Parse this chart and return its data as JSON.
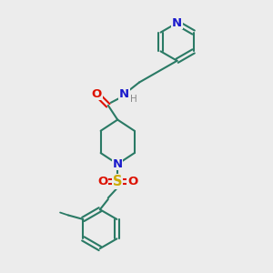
{
  "bg_color": "#ececec",
  "bond_color": "#2a7a65",
  "N_color": "#1a1acc",
  "O_color": "#dd1100",
  "S_color": "#ccaa00",
  "H_color": "#888888",
  "line_width": 1.5,
  "font_size": 8.5,
  "fig_size": [
    3.0,
    3.0
  ],
  "dpi": 100,
  "xlim": [
    0,
    10
  ],
  "ylim": [
    0,
    10
  ]
}
